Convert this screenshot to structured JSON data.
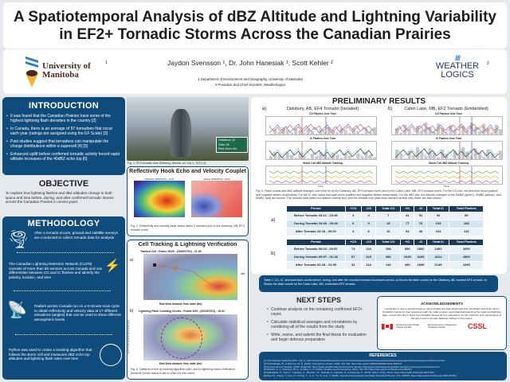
{
  "title": {
    "line1": "A Spatiotemporal Analysis of dBZ Altitude and Lightning Variability",
    "line2": "in EF2+ Tornadic Storms Across the Canadian Prairies"
  },
  "header": {
    "uni_logo": "University of Manitoba",
    "uni_sup": "1",
    "authors": "Jaydon Svensson ¹, Dr. John Hanesiak ¹, Scott Kehler ²",
    "aff1": "1  Department of Environment and Geography, University of Manitoba",
    "aff2": "2  President and Chief Scientist, Weatherlogics",
    "wl_logo1": "WEATHER",
    "wl_logo2": "LOGICS",
    "wl_sup": "2"
  },
  "intro": {
    "heading": "INTRODUCTION",
    "bullets": [
      "It was found that the Canadian Prairies have some of the highest lightning flash densities in the country [2]",
      "In Canada, there is an average of 97 tornadoes that occur each year (ratings are assigned using the EF Scale) [3]",
      "Past studies suggest that tornadoes can manipulate the charge distributions within a supercell [4] [5]",
      "Enhanced uplift before confirmed tornadic activity forced rapid altitude increases of the 40dBZ echo top [6]"
    ]
  },
  "objective": {
    "heading": "OBJECTIVE",
    "text": "To explore how lightning flashes and dBZ altitudes change in both space and time before, during, and after confirmed tornadic storms across the Canadian Prairies in recent years"
  },
  "methodology": {
    "heading": "METHODOLOGY",
    "steps": [
      "After a tornado occurs, ground and satellite surveys are conducted to collect tornado data for analysis",
      "The Canadian Lightning Detection Network (CLDN) consists of more than 80 sensors across Canada and can differentiate between CG and IC flashes and identify the polarity, location, and time",
      "Radars across Canada run on a 6-minute scan cycle to obtain reflectivity and velocity data at 17 different elevations (angles) that can be used to show different atmospheric levels",
      "Python was used to create a tracking algorithm that follows the storm cell and measures dBZ echo top altitudes and lightning flash rates over time"
    ]
  },
  "fig1": {
    "sign": [
      "Didsbury 12",
      "Olds 26",
      "Red Deer 84"
    ],
    "caption": "Fig. 1. EF4 tornado near Didsbury, Alberta, on July 1, 2023 [1]"
  },
  "fig2": {
    "heading": "Reflectivity Hook Echo and Velocity Couplet",
    "panel1": "Reflectivity (2023/07/01) - 19:42",
    "panel2": "Velocity (2023/07/01) - 19:42",
    "caption": "Fig. 2. Reflectivity and velocity radar scans taken 3 minutes prior to the Didsbury, AB, EF4 tornado event"
  },
  "fig3": {
    "heading": "Cell Tracking & Lightning Verification",
    "a_label": "a)",
    "a_title": "Tracked Cell - Frame 28/29 - (2023/07/01) - 21:36",
    "b_label": "b)",
    "b_title": "Lightning Flash Counting Circles - Frame 9/29 - (2023/07/01) - 19:42",
    "xlabel": "East West distance from radar (km)",
    "ylabel": "North South distance from radar (km)",
    "cbar": "dBZ",
    "caption": "Fig. 3. Didsbury event a) tracking algorithm path, and b) lightning mask verification products (circle radius is set to 10km for this case)"
  },
  "results": {
    "heading": "PRELIMINARY RESULTS",
    "a_label": "a)",
    "a_title": "Didsbury, AB, EF4 Tornado (Isolated)",
    "b_label": "b)",
    "b_title": "Cabin Lake, MB, EF2 Tornado (Embedded)",
    "sub1": "CG Flashes Over Time",
    "sub2": "IC Flashes Over Time",
    "sub3": "Storm Cell dBZ Altitude Tracking",
    "xlabel": "Time",
    "caption": "Fig. 5. Flash counts and dBZ altitude changes over time for a) the Didsbury, AB, EF4 tornado event and b) the Cabin Lake, MB, EF2 tornado event. For the CG plot, red and blue show positive and negative strikes respectively. For the IC plot, black and cyan show positive and negative strikes respectively. For the dBZ plot, the altitude changes of the 30dBZ (green), 40dBZ (yellow), and 50dBZ (red) are shown. The tornado start (dark-red dashed vertical line) and the tornado end (dark-blue dashed vertical line) times are also shown."
  },
  "tables": {
    "headers": [
      "Period",
      "+CG",
      "-CG",
      "Total CG",
      "+IC",
      "-IC",
      "Total IC",
      "Total Flashes"
    ],
    "a": {
      "label": "a)",
      "rows": [
        [
          "Before Tornado 19:12 - 19:45",
          "3",
          "4",
          "7",
          "41",
          "51",
          "92",
          "99"
        ],
        [
          "During Tornado 19:45 - 20:18",
          "6",
          "9",
          "15",
          "77",
          "76",
          "153",
          "168"
        ],
        [
          "After Tornado 20:18 - 20:51",
          "4",
          "6",
          "10",
          "54",
          "49",
          "103",
          "113"
        ]
      ]
    },
    "b": {
      "label": "b)",
      "rows": [
        [
          "Before Tornado 00:34 - 00:57",
          "74",
          "124",
          "198",
          "690",
          "1802",
          "2492",
          "2690"
        ],
        [
          "During Tornado 00:57 - 01:18",
          "67",
          "219",
          "286",
          "1045",
          "3169",
          "4214",
          "4500"
        ],
        [
          "After Tornado 01:18 - 01:39",
          "32",
          "114",
          "146",
          "490",
          "1659",
          "2149",
          "2295"
        ]
      ]
    },
    "caption": "Table 1. CG, IC, and total flash counts before, during, and after the recorded tornado touchdown period. a) Shows the flash counts for the Didsbury, AB, isolated EF4 tornado. b) Shows the flash counts for the Cabin Lake, MB, embedded EF2 tornado."
  },
  "next": {
    "heading": "NEXT STEPS",
    "bullets": [
      "Continue analysis on the remaining confirmed EF2+ cases",
      "Calculate statistical averages and correlations by combining all of the results from the study",
      "Write, revise, and submit the final thesis for evaluation and begin defence preparation"
    ]
  },
  "ack": {
    "heading": "ACKNOWLEDGEMENTS",
    "text": "I would like to give a special thanks to Jason Knight and Kyle Ziolkowski from the Prairie and Arctic Storm Prediction Centre for their assistance with the radar program and obtaining/organizing the radar and lightning data. I would also like to thank the Canadian Severe Storms Laboratory for the collection and maintenance of the open source tornado database utilized in this project.",
    "eccc_en": "Environment and Climate Change Canada",
    "eccc_fr": "Environnement et Changement climatique Canada",
    "cssl": "CSSL"
  },
  "refs": {
    "heading": "REFERENCES",
    "items": [
      "[1] The Weather Network (2023, July 1). https://www.theweathernetwork.com/en/news/weather/severe/injuries-reported-houses-damaged-following-large-tornado-in-central",
      "[2] Kochtubajda, B., & Burrows, W. R. (2020). Atmosphere-Ocean, 58(5), 316-332. https://doi.org/10.1080/07055900.2020.1845117",
      "[3] Government of Canada. (2025, August 8). https://www.canada.ca/en/environment-climate-change/services/seasonal-weather-hazards-emergencies/tornadoes.html",
      "[4] Schultz, C. J., Petersen, W. A., & Carey, L. D. (2011). Weather and Forecasting, 26(5), 744-755. https://doi.org/10.1175/waf-d-10-05026.1",
      "[5] Nishihashi, M., Arai, K., Fujiwara, C., Mashiko, W., Yoshida, S., Hayashi, S., & Kusunoki, K. (2015). SOLA, 11(0), 18-22. https://doi.org/10.2151/sola.2015-005",
      "[6] Bao, M., Zhang, T., Guo, H., Cheng, T., Li, Z., Yu, H., & Li, Y. (2025). Journal of Atmospheric and Solar-Terrestrial Physics, 274, 106576. https://doi.org/10.1016/j.jastp.2025.106576"
    ]
  },
  "colors": {
    "navy": "#0f4c7b",
    "table_header": "#1c3a5a",
    "cssl_red": "#e31b23"
  }
}
